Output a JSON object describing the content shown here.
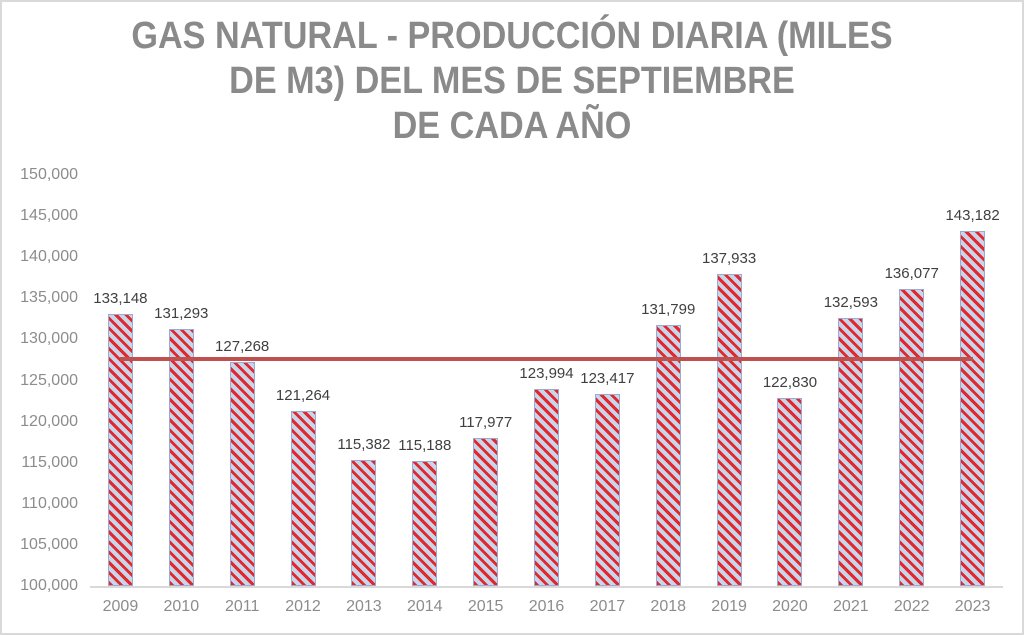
{
  "title": {
    "lines": [
      "GAS NATURAL - PRODUCCIÓN DIARIA (MILES",
      "DE M3) DEL MES DE SEPTIEMBRE",
      "DE CADA AÑO"
    ]
  },
  "chart_data": {
    "type": "bar",
    "title": "GAS NATURAL - PRODUCCIÓN DIARIA (MILES DE M3) DEL MES DE SEPTIEMBRE DE CADA AÑO",
    "categories": [
      "2009",
      "2010",
      "2011",
      "2012",
      "2013",
      "2014",
      "2015",
      "2016",
      "2017",
      "2018",
      "2019",
      "2020",
      "2021",
      "2022",
      "2023"
    ],
    "values": [
      133148,
      131293,
      127268,
      121264,
      115382,
      115188,
      117977,
      123994,
      123417,
      131799,
      137933,
      122830,
      132593,
      136077,
      143182
    ],
    "data_labels": [
      "133,148",
      "131,293",
      "127,268",
      "121,264",
      "115,382",
      "115,188",
      "117,977",
      "123,994",
      "123,417",
      "131,799",
      "137,933",
      "122,830",
      "132,593",
      "136,077",
      "143,182"
    ],
    "xlabel": "",
    "ylabel": "",
    "ylim": [
      100000,
      150000
    ],
    "ytick_step": 5000,
    "ytick_labels": [
      "100,000",
      "105,000",
      "110,000",
      "115,000",
      "120,000",
      "125,000",
      "130,000",
      "135,000",
      "140,000",
      "145,000",
      "150,000"
    ],
    "grid": false,
    "legend": false,
    "reference_line": {
      "value": 127556,
      "color": "#c0504d",
      "description": "average line across all years"
    },
    "colors": {
      "bar_fill": "#c9d6ea",
      "bar_stripe": "#e0282e",
      "bar_border": "#9aaad0",
      "reference_line": "#c0504d",
      "axis_line": "#d9d9d9",
      "title_text": "#8a8a8a",
      "axis_text": "#8c8c8c",
      "data_label_text": "#404040",
      "background": "#ffffff",
      "border": "#d9d9d9"
    }
  }
}
